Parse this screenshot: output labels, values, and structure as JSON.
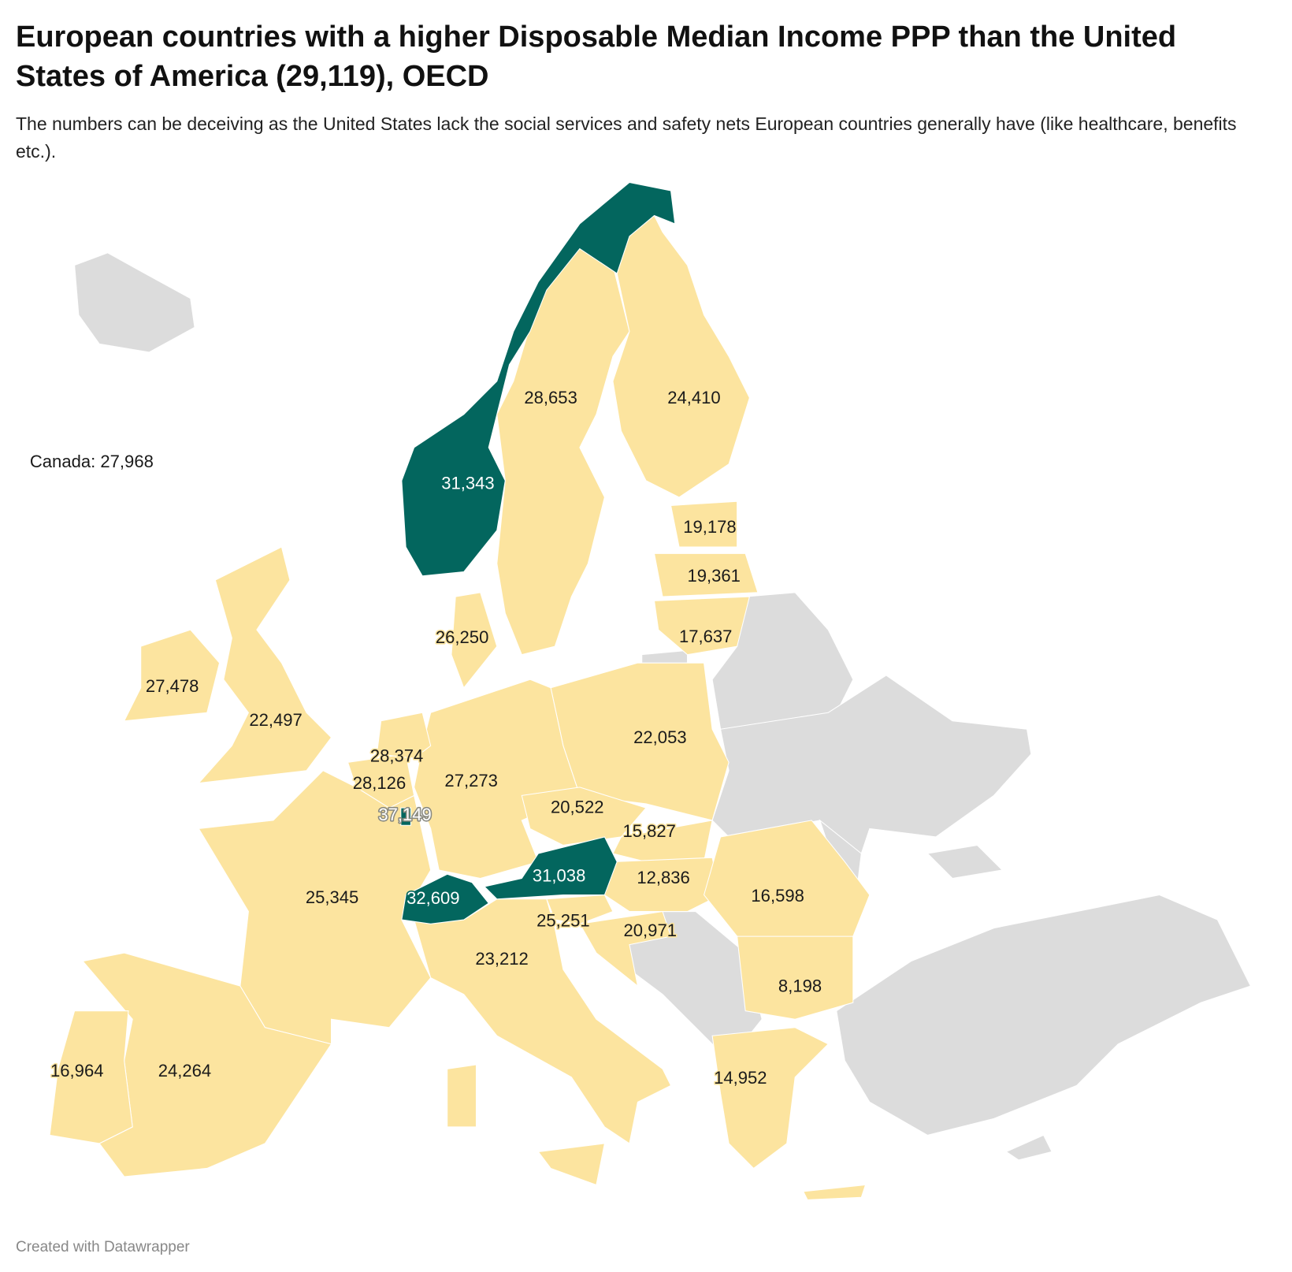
{
  "header": {
    "title": "European countries with a higher Disposable Median Income PPP than the United States of America (29,119), OECD",
    "subtitle": "The numbers can be deceiving as the United States lack the social services and safety nets European countries generally have (like healthcare, benefits etc.)."
  },
  "colors": {
    "above_us": "#03665e",
    "below_us": "#fce49f",
    "no_data": "#dcdcdc"
  },
  "annotation": "Canada: 27,968",
  "labels": {
    "norway": "31,343",
    "sweden": "28,653",
    "finland": "24,410",
    "estonia": "19,178",
    "latvia": "19,361",
    "lithuania": "17,637",
    "denmark": "26,250",
    "ireland": "27,478",
    "uk": "22,497",
    "netherlands": "28,374",
    "belgium": "28,126",
    "luxembourg": "37,149",
    "germany": "27,273",
    "poland": "22,053",
    "czechia": "20,522",
    "slovakia": "15,827",
    "austria": "31,038",
    "hungary": "12,836",
    "switzerland": "32,609",
    "france": "25,345",
    "slovenia": "25,251",
    "croatia": "20,971",
    "romania": "16,598",
    "italy": "23,212",
    "bulgaria": "8,198",
    "greece": "14,952",
    "portugal": "16,964",
    "spain": "24,264"
  },
  "footer": "Created with Datawrapper"
}
